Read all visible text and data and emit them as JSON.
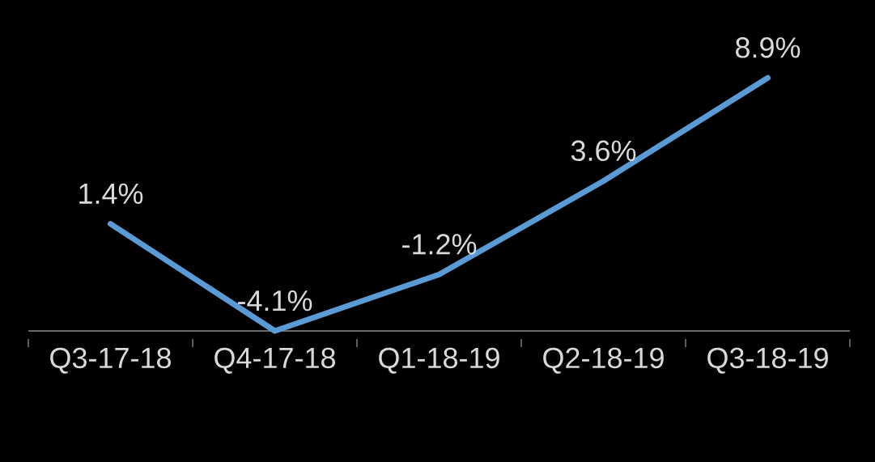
{
  "chart_data": {
    "type": "line",
    "categories": [
      "Q3-17-18",
      "Q4-17-18",
      "Q1-18-19",
      "Q2-18-19",
      "Q3-18-19"
    ],
    "series": [
      {
        "color": "#5b9bd5",
        "values": [
          1.4,
          -4.1,
          -1.2,
          3.6,
          8.9
        ],
        "value_labels": [
          "1.4%",
          "-4.1%",
          "-1.2%",
          "3.6%",
          "8.9%"
        ]
      }
    ],
    "tick_labels": "x",
    "grid": false,
    "marker": "none",
    "line_style": "solid"
  }
}
